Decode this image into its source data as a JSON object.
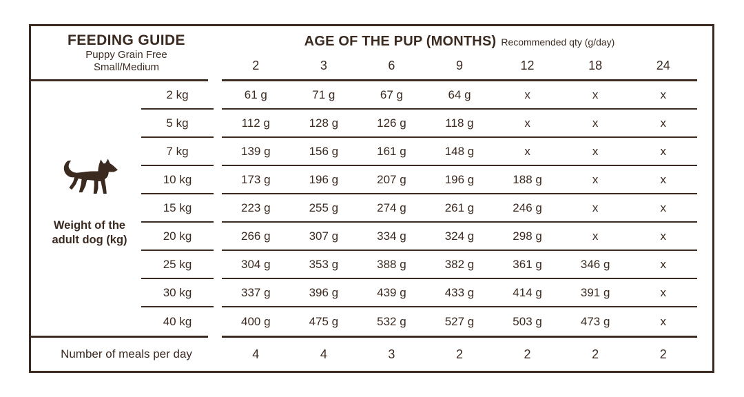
{
  "table": {
    "title": "FEEDING GUIDE",
    "subtitle_line1": "Puppy Grain Free",
    "subtitle_line2": "Small/Medium",
    "age_header": "AGE OF THE PUP (MONTHS)",
    "age_note": "Recommended qty (g/day)",
    "side_label_line1": "Weight of the",
    "side_label_line2": "adult dog (kg)",
    "meals_label": "Number of meals per day",
    "columns": [
      "2",
      "3",
      "6",
      "9",
      "12",
      "18",
      "24"
    ],
    "rows": [
      {
        "weight": "2 kg",
        "values": [
          "61 g",
          "71 g",
          "67 g",
          "64 g",
          "x",
          "x",
          "x"
        ]
      },
      {
        "weight": "5 kg",
        "values": [
          "112 g",
          "128 g",
          "126 g",
          "118 g",
          "x",
          "x",
          "x"
        ]
      },
      {
        "weight": "7 kg",
        "values": [
          "139 g",
          "156 g",
          "161 g",
          "148 g",
          "x",
          "x",
          "x"
        ]
      },
      {
        "weight": "10 kg",
        "values": [
          "173 g",
          "196 g",
          "207 g",
          "196 g",
          "188 g",
          "x",
          "x"
        ]
      },
      {
        "weight": "15 kg",
        "values": [
          "223 g",
          "255 g",
          "274 g",
          "261 g",
          "246 g",
          "x",
          "x"
        ]
      },
      {
        "weight": "20 kg",
        "values": [
          "266 g",
          "307 g",
          "334 g",
          "324 g",
          "298 g",
          "x",
          "x"
        ]
      },
      {
        "weight": "25 kg",
        "values": [
          "304 g",
          "353 g",
          "388 g",
          "382 g",
          "361 g",
          "346 g",
          "x"
        ]
      },
      {
        "weight": "30 kg",
        "values": [
          "337 g",
          "396 g",
          "439 g",
          "433 g",
          "414 g",
          "391 g",
          "x"
        ]
      },
      {
        "weight": "40 kg",
        "values": [
          "400 g",
          "475 g",
          "532 g",
          "527 g",
          "503 g",
          "473 g",
          "x"
        ]
      }
    ],
    "meals": [
      "4",
      "4",
      "3",
      "2",
      "2",
      "2",
      "2"
    ],
    "colors": {
      "ink": "#3b2a20",
      "background": "#ffffff"
    }
  },
  "chart_data": {
    "type": "table",
    "title": "FEEDING GUIDE",
    "subtitle": "Puppy Grain Free Small/Medium",
    "columns_label": "AGE OF THE PUP (MONTHS)",
    "unit_note": "Recommended qty (g/day)",
    "row_axis_label": "Weight of the adult dog (kg)",
    "age_months": [
      2,
      3,
      6,
      9,
      12,
      18,
      24
    ],
    "adult_weight_kg": [
      2,
      5,
      7,
      10,
      15,
      20,
      25,
      30,
      40
    ],
    "grams_per_day": [
      [
        61,
        71,
        67,
        64,
        null,
        null,
        null
      ],
      [
        112,
        128,
        126,
        118,
        null,
        null,
        null
      ],
      [
        139,
        156,
        161,
        148,
        null,
        null,
        null
      ],
      [
        173,
        196,
        207,
        196,
        188,
        null,
        null
      ],
      [
        223,
        255,
        274,
        261,
        246,
        null,
        null
      ],
      [
        266,
        307,
        334,
        324,
        298,
        null,
        null
      ],
      [
        304,
        353,
        388,
        382,
        361,
        346,
        null
      ],
      [
        337,
        396,
        439,
        433,
        414,
        391,
        null
      ],
      [
        400,
        475,
        532,
        527,
        503,
        473,
        null
      ]
    ],
    "not_applicable_marker": "x",
    "meals_per_day_label": "Number of meals per day",
    "meals_per_day": [
      4,
      4,
      3,
      2,
      2,
      2,
      2
    ]
  }
}
